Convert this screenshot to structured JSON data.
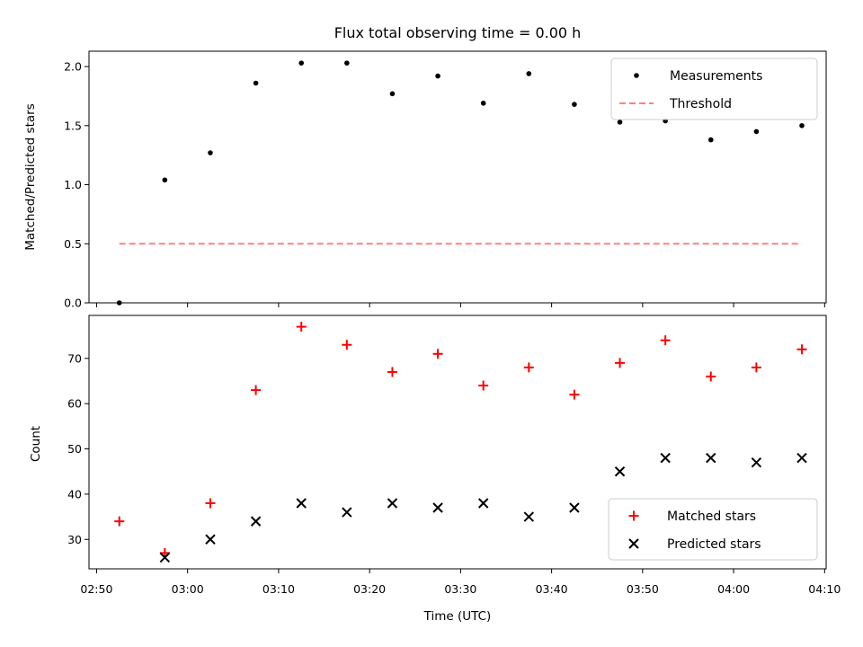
{
  "chart_data": [
    {
      "type": "scatter",
      "title": "Flux total observing time = 0.00 h",
      "xlabel": "",
      "ylabel": "Matched/Predicted stars",
      "ylim": [
        0.0,
        2.13
      ],
      "yticks": [
        0.0,
        0.5,
        1.0,
        1.5,
        2.0
      ],
      "ytick_labels": [
        "0.0",
        "0.5",
        "1.0",
        "1.5",
        "2.0"
      ],
      "legend_placement": "upper right",
      "series": [
        {
          "name": "Measurements",
          "color": "#000000",
          "marker": "dot",
          "x": [
            "02:52:30",
            "02:57:30",
            "03:02:30",
            "03:07:30",
            "03:12:30",
            "03:17:30",
            "03:22:30",
            "03:27:30",
            "03:32:30",
            "03:37:30",
            "03:42:30",
            "03:47:30",
            "03:52:30",
            "03:57:30",
            "04:02:30",
            "04:07:30"
          ],
          "values": [
            0.0,
            1.04,
            1.27,
            1.86,
            2.03,
            2.03,
            1.77,
            1.92,
            1.69,
            1.94,
            1.68,
            1.53,
            1.54,
            1.38,
            1.45,
            1.5
          ]
        },
        {
          "name": "Threshold",
          "color": "#ff8080",
          "style": "dashed-line",
          "x": [
            "02:52:30",
            "04:07:30"
          ],
          "values": [
            0.5,
            0.5
          ]
        }
      ]
    },
    {
      "type": "scatter",
      "title": "",
      "xlabel": "Time (UTC)",
      "ylabel": "Count",
      "ylim": [
        23.5,
        79.5
      ],
      "yticks": [
        30,
        40,
        50,
        60,
        70
      ],
      "ytick_labels": [
        "30",
        "40",
        "50",
        "60",
        "70"
      ],
      "xticks": [
        "02:50",
        "03:00",
        "03:10",
        "03:20",
        "03:30",
        "03:40",
        "03:50",
        "04:00",
        "04:10"
      ],
      "xlim": [
        "02:49:10",
        "04:10:10"
      ],
      "legend_placement": "lower right",
      "series": [
        {
          "name": "Matched stars",
          "color": "#ff0000",
          "marker": "plus",
          "x": [
            "02:52:30",
            "02:57:30",
            "03:02:30",
            "03:07:30",
            "03:12:30",
            "03:17:30",
            "03:22:30",
            "03:27:30",
            "03:32:30",
            "03:37:30",
            "03:42:30",
            "03:47:30",
            "03:52:30",
            "03:57:30",
            "04:02:30",
            "04:07:30"
          ],
          "values": [
            34,
            27,
            38,
            63,
            77,
            73,
            67,
            71,
            64,
            68,
            62,
            69,
            74,
            66,
            68,
            72
          ]
        },
        {
          "name": "Predicted stars",
          "color": "#000000",
          "marker": "x",
          "x": [
            "02:57:30",
            "03:02:30",
            "03:07:30",
            "03:12:30",
            "03:17:30",
            "03:22:30",
            "03:27:30",
            "03:32:30",
            "03:37:30",
            "03:42:30",
            "03:47:30",
            "03:52:30",
            "03:57:30",
            "04:02:30",
            "04:07:30"
          ],
          "values": [
            26,
            30,
            34,
            38,
            36,
            38,
            37,
            38,
            35,
            37,
            45,
            48,
            48,
            47,
            48
          ]
        }
      ]
    }
  ]
}
